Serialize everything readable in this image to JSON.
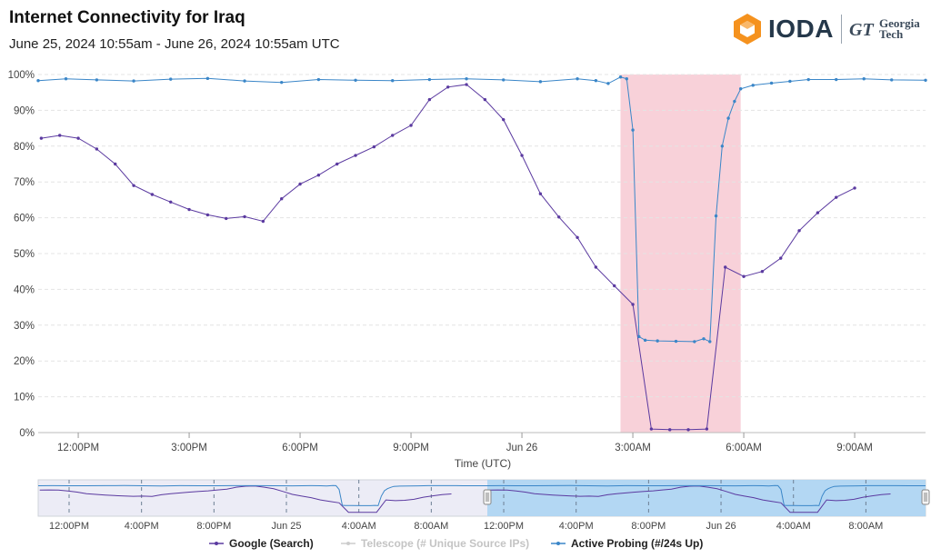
{
  "header": {
    "title": "Internet Connectivity for  Iraq",
    "subtitle": "June 25, 2024 10:55am - June 26, 2024 10:55am UTC"
  },
  "logo": {
    "brand": "IODA",
    "partner_line1": "Georgia",
    "partner_line2": "Tech",
    "brand_color": "#f5921e",
    "partner_mark": "GT"
  },
  "navigator": {
    "tick_labels": [
      "12:00PM",
      "4:00PM",
      "8:00PM",
      "Jun 25",
      "4:00AM",
      "8:00AM",
      "12:00PM",
      "4:00PM",
      "8:00PM",
      "Jun 26",
      "4:00AM",
      "8:00AM"
    ]
  },
  "legend": [
    {
      "label": "Google (Search)",
      "color": "#5b3aa0",
      "enabled": true
    },
    {
      "label": "Telescope (# Unique Source IPs)",
      "color": "#c8c8c8",
      "enabled": false
    },
    {
      "label": "Active Probing (#/24s Up)",
      "color": "#3a86c8",
      "enabled": true
    }
  ],
  "chart_data": {
    "type": "line",
    "title": "Internet Connectivity for  Iraq",
    "subtitle": "June 25, 2024 10:55am - June 26, 2024 10:55am UTC",
    "xlabel": "Time (UTC)",
    "ylabel": "",
    "y_unit": "%",
    "ylim": [
      0,
      100
    ],
    "y_ticks": [
      0,
      10,
      20,
      30,
      40,
      50,
      60,
      70,
      80,
      90,
      100
    ],
    "x_range": [
      "2024-06-25T10:55",
      "2024-06-26T10:55"
    ],
    "x_ticks": [
      {
        "t": "2024-06-25T12:00",
        "label": "12:00PM"
      },
      {
        "t": "2024-06-25T15:00",
        "label": "3:00PM"
      },
      {
        "t": "2024-06-25T18:00",
        "label": "6:00PM"
      },
      {
        "t": "2024-06-25T21:00",
        "label": "9:00PM"
      },
      {
        "t": "2024-06-26T00:00",
        "label": "Jun 26"
      },
      {
        "t": "2024-06-26T03:00",
        "label": "3:00AM"
      },
      {
        "t": "2024-06-26T06:00",
        "label": "6:00AM"
      },
      {
        "t": "2024-06-26T09:00",
        "label": "9:00AM"
      }
    ],
    "grid": true,
    "legend_position": "bottom",
    "highlight": {
      "start": "2024-06-26T02:40",
      "end": "2024-06-26T05:55",
      "color": "#f7c9d2"
    },
    "series": [
      {
        "name": "Google (Search)",
        "color": "#5b3aa0",
        "points": [
          [
            "2024-06-25T11:00",
            82.2
          ],
          [
            "2024-06-25T11:30",
            83.0
          ],
          [
            "2024-06-25T12:00",
            82.2
          ],
          [
            "2024-06-25T12:30",
            79.2
          ],
          [
            "2024-06-25T13:00",
            75.0
          ],
          [
            "2024-06-25T13:30",
            69.0
          ],
          [
            "2024-06-25T14:00",
            66.5
          ],
          [
            "2024-06-25T14:30",
            64.4
          ],
          [
            "2024-06-25T15:00",
            62.3
          ],
          [
            "2024-06-25T15:30",
            60.8
          ],
          [
            "2024-06-25T16:00",
            59.8
          ],
          [
            "2024-06-25T16:30",
            60.3
          ],
          [
            "2024-06-25T17:00",
            59.0
          ],
          [
            "2024-06-25T17:30",
            65.3
          ],
          [
            "2024-06-25T18:00",
            69.4
          ],
          [
            "2024-06-25T18:30",
            71.9
          ],
          [
            "2024-06-25T19:00",
            75.0
          ],
          [
            "2024-06-25T19:30",
            77.4
          ],
          [
            "2024-06-25T20:00",
            79.8
          ],
          [
            "2024-06-25T20:30",
            83.0
          ],
          [
            "2024-06-25T21:00",
            85.8
          ],
          [
            "2024-06-25T21:30",
            93.0
          ],
          [
            "2024-06-25T22:00",
            96.5
          ],
          [
            "2024-06-25T22:30",
            97.2
          ],
          [
            "2024-06-25T23:00",
            93.0
          ],
          [
            "2024-06-25T23:30",
            87.4
          ],
          [
            "2024-06-26T00:00",
            77.4
          ],
          [
            "2024-06-26T00:30",
            66.7
          ],
          [
            "2024-06-26T01:00",
            60.2
          ],
          [
            "2024-06-26T01:30",
            54.5
          ],
          [
            "2024-06-26T02:00",
            46.2
          ],
          [
            "2024-06-26T02:30",
            41.0
          ],
          [
            "2024-06-26T03:00",
            35.8
          ],
          [
            "2024-06-26T03:30",
            1.0
          ],
          [
            "2024-06-26T04:00",
            0.8
          ],
          [
            "2024-06-26T04:30",
            0.8
          ],
          [
            "2024-06-26T05:00",
            1.0
          ],
          [
            "2024-06-26T05:30",
            46.2
          ],
          [
            "2024-06-26T06:00",
            43.6
          ],
          [
            "2024-06-26T06:30",
            45.0
          ],
          [
            "2024-06-26T07:00",
            48.7
          ],
          [
            "2024-06-26T07:30",
            56.4
          ],
          [
            "2024-06-26T08:00",
            61.4
          ],
          [
            "2024-06-26T08:30",
            65.7
          ],
          [
            "2024-06-26T09:00",
            68.3
          ]
        ]
      },
      {
        "name": "Active Probing (#/24s Up)",
        "color": "#3a86c8",
        "points": [
          [
            "2024-06-25T10:55",
            98.3
          ],
          [
            "2024-06-25T11:40",
            98.8
          ],
          [
            "2024-06-25T12:30",
            98.5
          ],
          [
            "2024-06-25T13:30",
            98.2
          ],
          [
            "2024-06-25T14:30",
            98.7
          ],
          [
            "2024-06-25T15:30",
            98.9
          ],
          [
            "2024-06-25T16:30",
            98.2
          ],
          [
            "2024-06-25T17:30",
            97.8
          ],
          [
            "2024-06-25T18:30",
            98.6
          ],
          [
            "2024-06-25T19:30",
            98.4
          ],
          [
            "2024-06-25T20:30",
            98.3
          ],
          [
            "2024-06-25T21:30",
            98.6
          ],
          [
            "2024-06-25T22:30",
            98.8
          ],
          [
            "2024-06-25T23:30",
            98.5
          ],
          [
            "2024-06-26T00:30",
            98.0
          ],
          [
            "2024-06-26T01:30",
            98.8
          ],
          [
            "2024-06-26T02:00",
            98.3
          ],
          [
            "2024-06-26T02:20",
            97.5
          ],
          [
            "2024-06-26T02:40",
            99.3
          ],
          [
            "2024-06-26T02:50",
            98.8
          ],
          [
            "2024-06-26T03:00",
            84.5
          ],
          [
            "2024-06-26T03:10",
            26.8
          ],
          [
            "2024-06-26T03:20",
            25.8
          ],
          [
            "2024-06-26T03:40",
            25.6
          ],
          [
            "2024-06-26T04:10",
            25.5
          ],
          [
            "2024-06-26T04:40",
            25.4
          ],
          [
            "2024-06-26T04:55",
            26.2
          ],
          [
            "2024-06-26T05:05",
            25.4
          ],
          [
            "2024-06-26T05:15",
            60.5
          ],
          [
            "2024-06-26T05:25",
            80.0
          ],
          [
            "2024-06-26T05:35",
            87.8
          ],
          [
            "2024-06-26T05:45",
            92.5
          ],
          [
            "2024-06-26T05:55",
            96.0
          ],
          [
            "2024-06-26T06:15",
            97.0
          ],
          [
            "2024-06-26T06:45",
            97.6
          ],
          [
            "2024-06-26T07:15",
            98.1
          ],
          [
            "2024-06-26T07:45",
            98.6
          ],
          [
            "2024-06-26T08:30",
            98.6
          ],
          [
            "2024-06-26T09:15",
            98.8
          ],
          [
            "2024-06-26T10:00",
            98.5
          ],
          [
            "2024-06-26T10:55",
            98.4
          ]
        ]
      }
    ]
  }
}
